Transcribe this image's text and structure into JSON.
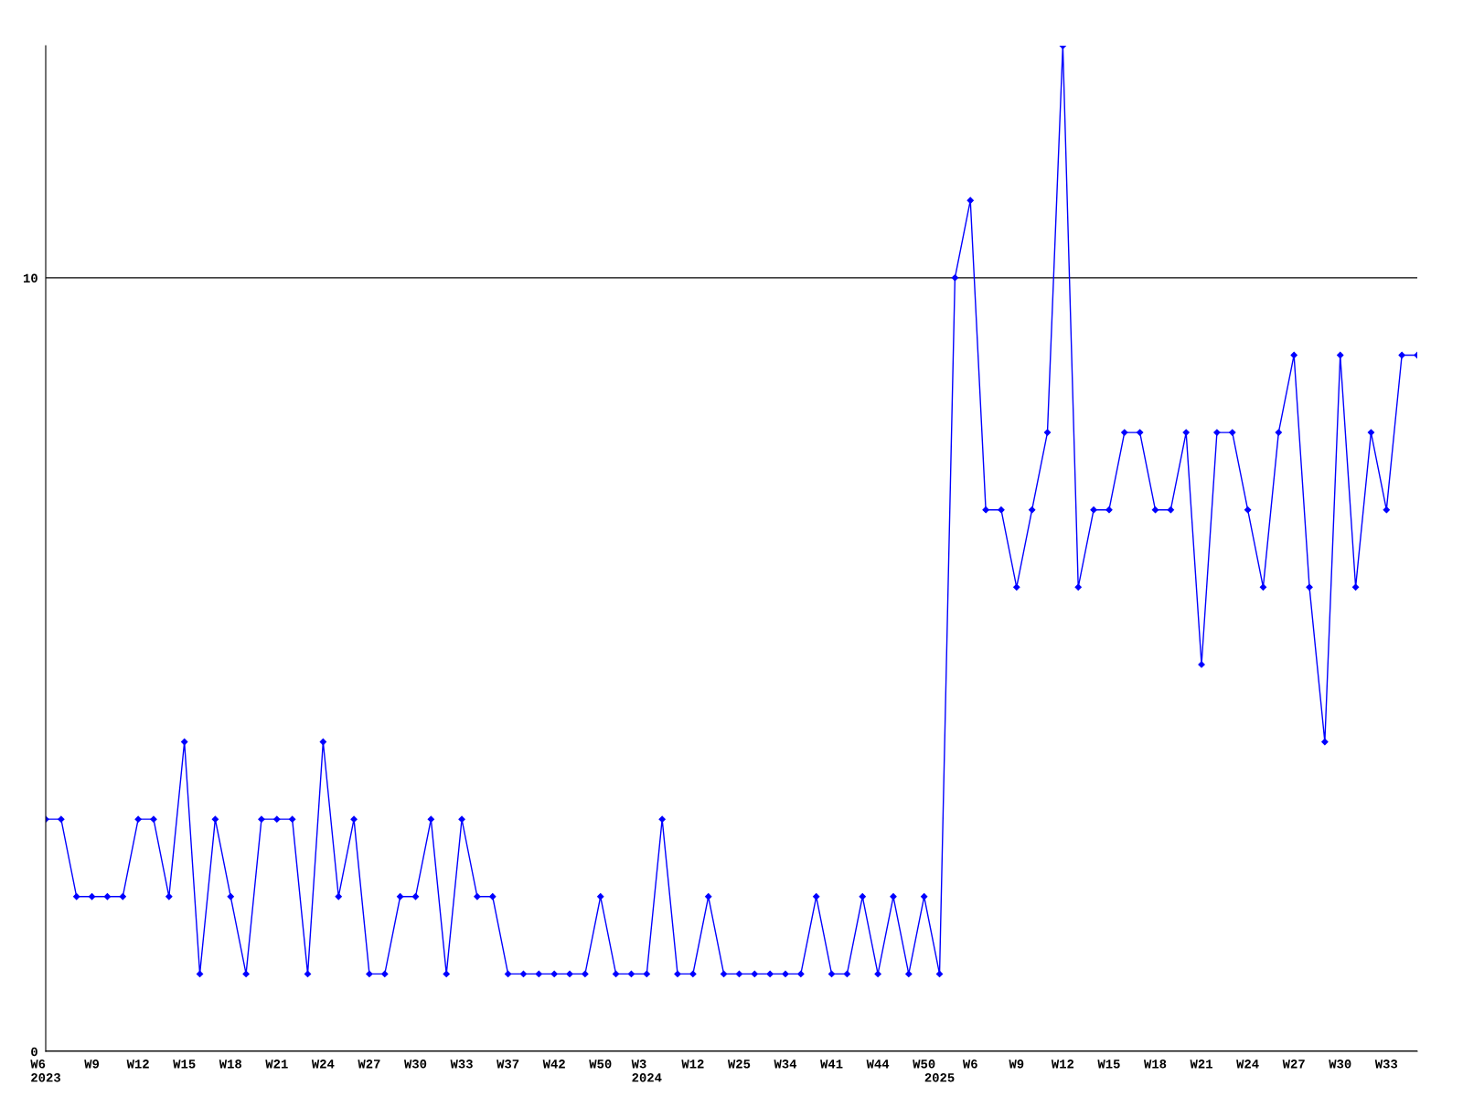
{
  "chart_data": {
    "type": "line",
    "categories": [
      "W6\n2023",
      null,
      null,
      "W9",
      null,
      null,
      "W12",
      null,
      null,
      "W15",
      null,
      null,
      "W18",
      null,
      null,
      "W21",
      null,
      null,
      "W24",
      null,
      null,
      "W27",
      null,
      null,
      "W30",
      null,
      null,
      "W33",
      null,
      null,
      "W37",
      null,
      null,
      "W42",
      null,
      null,
      "W50",
      null,
      null,
      "W3\n2024",
      null,
      null,
      "W12",
      null,
      null,
      "W25",
      null,
      null,
      "W34",
      null,
      null,
      "W41",
      null,
      null,
      "W44",
      null,
      null,
      "W50",
      "\n2025",
      null,
      "W6",
      null,
      null,
      "W9",
      null,
      null,
      "W12",
      null,
      null,
      "W15",
      null,
      null,
      "W18",
      null,
      null,
      "W21",
      null,
      null,
      "W24",
      null,
      null,
      "W27",
      null,
      null,
      "W30",
      null,
      null,
      "W33",
      null,
      null
    ],
    "series": [
      {
        "color": "#0000ff",
        "values": [
          3,
          3,
          2,
          2,
          2,
          2,
          3,
          3,
          2,
          4,
          1,
          3,
          2,
          1,
          3,
          3,
          3,
          1,
          4,
          2,
          3,
          1,
          1,
          2,
          2,
          3,
          1,
          3,
          2,
          2,
          1,
          1,
          1,
          1,
          1,
          1,
          2,
          1,
          1,
          1,
          3,
          1,
          1,
          2,
          1,
          1,
          1,
          1,
          1,
          1,
          2,
          1,
          1,
          2,
          1,
          2,
          1,
          2,
          1,
          10,
          11,
          7,
          7,
          6,
          7,
          8,
          13,
          6,
          7,
          7,
          8,
          8,
          7,
          7,
          8,
          5,
          8,
          8,
          7,
          6,
          8,
          9,
          6,
          4,
          9,
          6,
          8,
          7,
          9,
          9
        ]
      }
    ],
    "ylim": [
      0,
      13
    ],
    "yticks": [
      0,
      10
    ],
    "grid": "y",
    "marker": "diamond",
    "line_style": "solid",
    "legend": false
  }
}
